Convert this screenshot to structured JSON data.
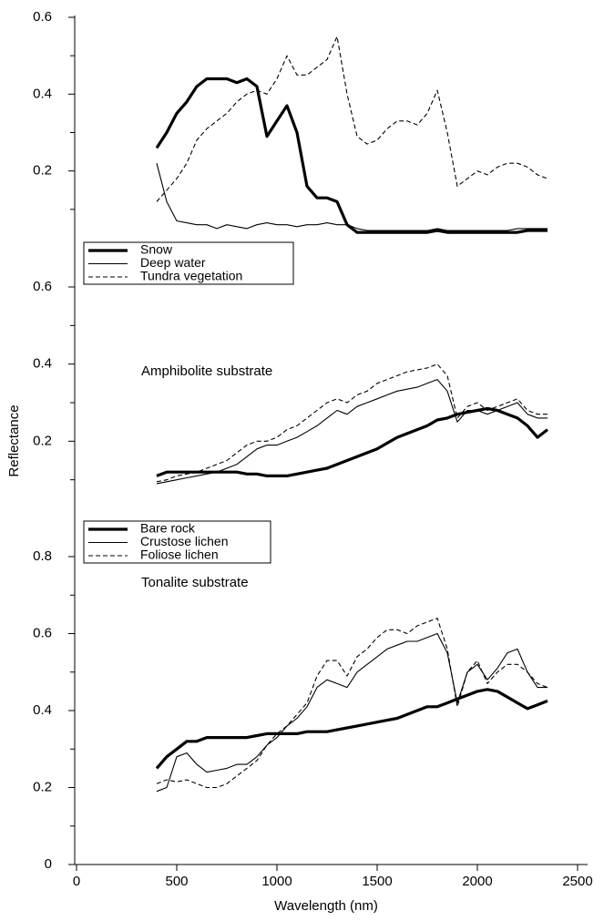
{
  "chart_data": [
    {
      "type": "line",
      "ylim": [
        0,
        0.6
      ],
      "yticks": [
        0.2,
        0.4,
        0.6
      ],
      "minor_yticks": [
        0.1,
        0.3,
        0.5
      ],
      "legend": "below",
      "x": [
        400,
        450,
        500,
        550,
        600,
        650,
        700,
        750,
        800,
        850,
        900,
        950,
        1000,
        1050,
        1100,
        1150,
        1200,
        1250,
        1300,
        1350,
        1400,
        1450,
        1500,
        1550,
        1600,
        1650,
        1700,
        1750,
        1800,
        1850,
        1900,
        1950,
        2000,
        2050,
        2100,
        2150,
        2200,
        2250,
        2300,
        2350
      ],
      "series": [
        {
          "name": "Snow",
          "color": "#000000",
          "style": "thick",
          "values": [
            0.26,
            0.3,
            0.35,
            0.38,
            0.42,
            0.44,
            0.44,
            0.44,
            0.43,
            0.44,
            0.42,
            0.29,
            0.33,
            0.37,
            0.3,
            0.16,
            0.13,
            0.13,
            0.12,
            0.06,
            0.04,
            0.04,
            0.04,
            0.04,
            0.04,
            0.04,
            0.04,
            0.04,
            0.045,
            0.04,
            0.04,
            0.04,
            0.04,
            0.04,
            0.04,
            0.04,
            0.04,
            0.045,
            0.045,
            0.045
          ]
        },
        {
          "name": "Deep water",
          "color": "#000000",
          "style": "thin",
          "values": [
            0.22,
            0.12,
            0.07,
            0.065,
            0.06,
            0.06,
            0.05,
            0.06,
            0.055,
            0.05,
            0.06,
            0.065,
            0.06,
            0.06,
            0.055,
            0.06,
            0.06,
            0.065,
            0.06,
            0.06,
            0.05,
            0.045,
            0.045,
            0.045,
            0.045,
            0.045,
            0.045,
            0.045,
            0.05,
            0.045,
            0.045,
            0.045,
            0.045,
            0.045,
            0.045,
            0.045,
            0.05,
            0.05,
            0.05,
            0.05
          ]
        },
        {
          "name": "Tundra vegetation",
          "color": "#000000",
          "style": "dashed",
          "values": [
            0.12,
            0.15,
            0.18,
            0.22,
            0.28,
            0.31,
            0.33,
            0.35,
            0.38,
            0.4,
            0.41,
            0.4,
            0.44,
            0.5,
            0.45,
            0.45,
            0.47,
            0.49,
            0.55,
            0.4,
            0.29,
            0.27,
            0.28,
            0.31,
            0.33,
            0.33,
            0.32,
            0.35,
            0.41,
            0.3,
            0.16,
            0.18,
            0.2,
            0.19,
            0.21,
            0.22,
            0.22,
            0.21,
            0.19,
            0.18
          ]
        }
      ]
    },
    {
      "type": "line",
      "ylabel": "Reflectance",
      "annotation": "Amphibolite substrate",
      "ylim": [
        0,
        0.6
      ],
      "yticks": [
        0.2,
        0.4,
        0.6
      ],
      "minor_yticks": [
        0.1,
        0.3,
        0.5
      ],
      "legend": "below",
      "x": [
        400,
        450,
        500,
        550,
        600,
        650,
        700,
        750,
        800,
        850,
        900,
        950,
        1000,
        1050,
        1100,
        1150,
        1200,
        1250,
        1300,
        1350,
        1400,
        1450,
        1500,
        1550,
        1600,
        1650,
        1700,
        1750,
        1800,
        1850,
        1900,
        1950,
        2000,
        2050,
        2100,
        2150,
        2200,
        2250,
        2300,
        2350
      ],
      "series": [
        {
          "name": "Bare rock",
          "color": "#000000",
          "style": "thick",
          "values": [
            0.11,
            0.12,
            0.12,
            0.12,
            0.12,
            0.12,
            0.12,
            0.12,
            0.12,
            0.115,
            0.115,
            0.11,
            0.11,
            0.11,
            0.115,
            0.12,
            0.125,
            0.13,
            0.14,
            0.15,
            0.16,
            0.17,
            0.18,
            0.195,
            0.21,
            0.22,
            0.23,
            0.24,
            0.255,
            0.26,
            0.27,
            0.275,
            0.28,
            0.285,
            0.28,
            0.27,
            0.26,
            0.24,
            0.21,
            0.23
          ]
        },
        {
          "name": "Crustose lichen",
          "color": "#000000",
          "style": "thin",
          "values": [
            0.09,
            0.095,
            0.1,
            0.105,
            0.11,
            0.115,
            0.12,
            0.13,
            0.14,
            0.16,
            0.18,
            0.19,
            0.19,
            0.2,
            0.21,
            0.225,
            0.24,
            0.26,
            0.28,
            0.27,
            0.29,
            0.3,
            0.31,
            0.32,
            0.33,
            0.335,
            0.34,
            0.35,
            0.36,
            0.33,
            0.25,
            0.28,
            0.28,
            0.27,
            0.28,
            0.29,
            0.3,
            0.27,
            0.26,
            0.26
          ]
        },
        {
          "name": "Foliose lichen",
          "color": "#000000",
          "style": "dashed",
          "values": [
            0.095,
            0.1,
            0.11,
            0.115,
            0.12,
            0.13,
            0.14,
            0.15,
            0.17,
            0.19,
            0.2,
            0.2,
            0.21,
            0.23,
            0.24,
            0.26,
            0.28,
            0.3,
            0.31,
            0.3,
            0.32,
            0.33,
            0.35,
            0.36,
            0.37,
            0.38,
            0.385,
            0.39,
            0.4,
            0.37,
            0.26,
            0.29,
            0.3,
            0.28,
            0.29,
            0.3,
            0.31,
            0.28,
            0.27,
            0.27
          ]
        }
      ]
    },
    {
      "type": "line",
      "annotation": "Tonalite substrate",
      "xlabel": "Wavelength (nm)",
      "xlim": [
        0,
        2500
      ],
      "xticks": [
        0,
        500,
        1000,
        1500,
        2000,
        2500
      ],
      "ylim": [
        0,
        0.8
      ],
      "yticks": [
        0,
        0.2,
        0.4,
        0.6,
        0.8
      ],
      "minor_yticks": [
        0.1,
        0.3,
        0.5,
        0.7
      ],
      "x": [
        400,
        450,
        500,
        550,
        600,
        650,
        700,
        750,
        800,
        850,
        900,
        950,
        1000,
        1050,
        1100,
        1150,
        1200,
        1250,
        1300,
        1350,
        1400,
        1450,
        1500,
        1550,
        1600,
        1650,
        1700,
        1750,
        1800,
        1850,
        1900,
        1950,
        2000,
        2050,
        2100,
        2150,
        2200,
        2250,
        2300,
        2350
      ],
      "series": [
        {
          "name": "Bare rock",
          "color": "#000000",
          "style": "thick",
          "values": [
            0.25,
            0.28,
            0.3,
            0.32,
            0.32,
            0.33,
            0.33,
            0.33,
            0.33,
            0.33,
            0.335,
            0.34,
            0.34,
            0.34,
            0.34,
            0.345,
            0.345,
            0.345,
            0.35,
            0.355,
            0.36,
            0.365,
            0.37,
            0.375,
            0.38,
            0.39,
            0.4,
            0.41,
            0.41,
            0.42,
            0.43,
            0.44,
            0.45,
            0.455,
            0.45,
            0.435,
            0.42,
            0.405,
            0.415,
            0.425
          ]
        },
        {
          "name": "Crustose lichen",
          "color": "#000000",
          "style": "thin",
          "values": [
            0.19,
            0.2,
            0.28,
            0.29,
            0.26,
            0.24,
            0.245,
            0.25,
            0.26,
            0.26,
            0.28,
            0.31,
            0.33,
            0.36,
            0.38,
            0.41,
            0.46,
            0.48,
            0.47,
            0.46,
            0.5,
            0.52,
            0.54,
            0.56,
            0.57,
            0.58,
            0.58,
            0.59,
            0.6,
            0.55,
            0.42,
            0.5,
            0.52,
            0.48,
            0.51,
            0.55,
            0.56,
            0.5,
            0.46,
            0.46
          ]
        },
        {
          "name": "Foliose lichen",
          "color": "#000000",
          "style": "dashed",
          "values": [
            0.21,
            0.22,
            0.215,
            0.22,
            0.21,
            0.2,
            0.2,
            0.21,
            0.23,
            0.25,
            0.27,
            0.31,
            0.34,
            0.36,
            0.39,
            0.42,
            0.49,
            0.53,
            0.53,
            0.49,
            0.54,
            0.56,
            0.59,
            0.61,
            0.61,
            0.6,
            0.62,
            0.63,
            0.64,
            0.56,
            0.41,
            0.5,
            0.53,
            0.47,
            0.5,
            0.52,
            0.52,
            0.5,
            0.47,
            0.46
          ]
        }
      ]
    }
  ]
}
